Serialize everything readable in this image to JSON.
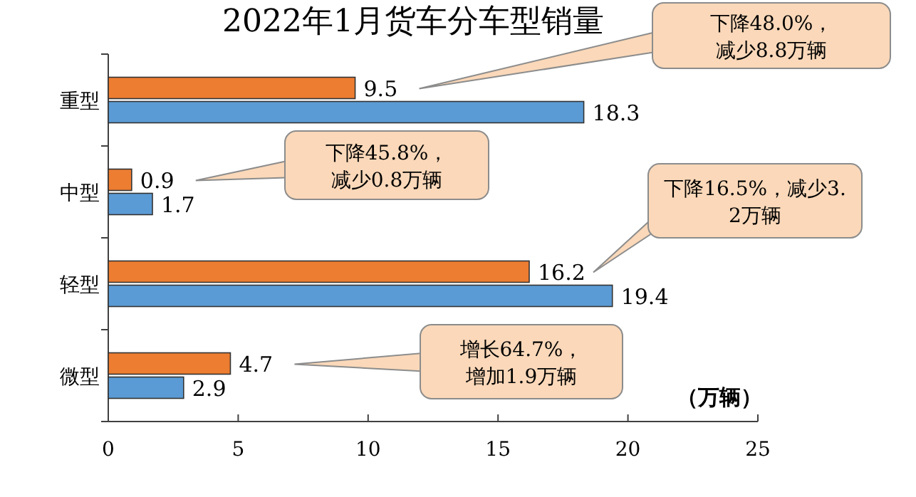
{
  "chart_data": {
    "type": "bar",
    "orientation": "horizontal",
    "title": "2022年1月货车分车型销量",
    "xlabel": "（万辆）",
    "categories": [
      "重型",
      "中型",
      "轻型",
      "微型"
    ],
    "series": [
      {
        "color": "#ed7d31",
        "values": [
          9.5,
          0.9,
          16.2,
          4.7
        ]
      },
      {
        "color": "#5b9bd5",
        "values": [
          18.3,
          1.7,
          19.4,
          2.9
        ]
      }
    ],
    "xlim": [
      0,
      25
    ],
    "xticks": [
      0,
      5,
      10,
      15,
      20,
      25
    ],
    "data_labels": true,
    "annotations": [
      "下降48.0%，减少8.8万辆",
      "下降45.8%，减少0.8万辆",
      "下降16.5%，减少3.2万辆",
      "增长64.7%，增加1.9万辆"
    ]
  }
}
